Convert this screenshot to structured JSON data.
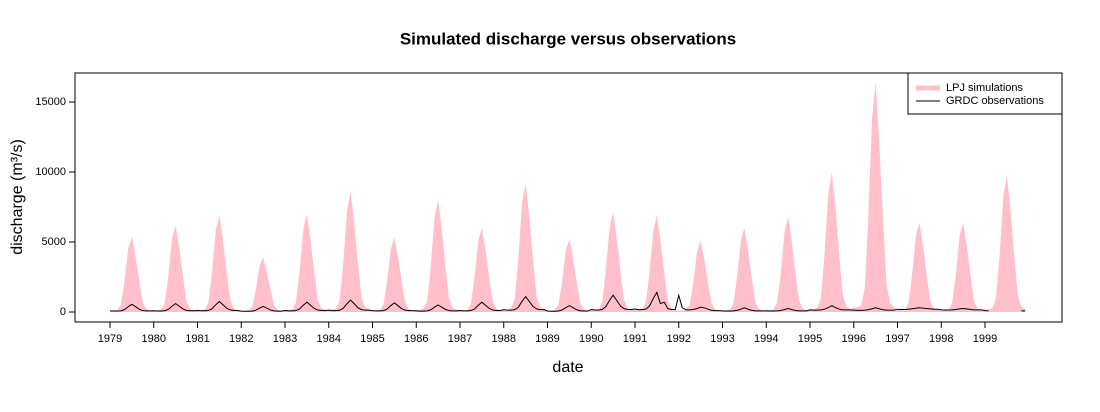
{
  "chart_data": {
    "type": "line",
    "title": "Simulated discharge versus observations",
    "xlabel": "date",
    "ylabel": "discharge (m³/s)",
    "x": [
      1979,
      1979.08,
      1979.17,
      1979.25,
      1979.33,
      1979.42,
      1979.5,
      1979.58,
      1979.67,
      1979.75,
      1979.83,
      1979.92,
      1980,
      1980.08,
      1980.17,
      1980.25,
      1980.33,
      1980.42,
      1980.5,
      1980.58,
      1980.67,
      1980.75,
      1980.83,
      1980.92,
      1981,
      1981.08,
      1981.17,
      1981.25,
      1981.33,
      1981.42,
      1981.5,
      1981.58,
      1981.67,
      1981.75,
      1981.83,
      1981.92,
      1982,
      1982.08,
      1982.17,
      1982.25,
      1982.33,
      1982.42,
      1982.5,
      1982.58,
      1982.67,
      1982.75,
      1982.83,
      1982.92,
      1983,
      1983.08,
      1983.17,
      1983.25,
      1983.33,
      1983.42,
      1983.5,
      1983.58,
      1983.67,
      1983.75,
      1983.83,
      1983.92,
      1984,
      1984.08,
      1984.17,
      1984.25,
      1984.33,
      1984.42,
      1984.5,
      1984.58,
      1984.67,
      1984.75,
      1984.83,
      1984.92,
      1985,
      1985.08,
      1985.17,
      1985.25,
      1985.33,
      1985.42,
      1985.5,
      1985.58,
      1985.67,
      1985.75,
      1985.83,
      1985.92,
      1986,
      1986.08,
      1986.17,
      1986.25,
      1986.33,
      1986.42,
      1986.5,
      1986.58,
      1986.67,
      1986.75,
      1986.83,
      1986.92,
      1987,
      1987.08,
      1987.17,
      1987.25,
      1987.33,
      1987.42,
      1987.5,
      1987.58,
      1987.67,
      1987.75,
      1987.83,
      1987.92,
      1988,
      1988.08,
      1988.17,
      1988.25,
      1988.33,
      1988.42,
      1988.5,
      1988.58,
      1988.67,
      1988.75,
      1988.83,
      1988.92,
      1989,
      1989.08,
      1989.17,
      1989.25,
      1989.33,
      1989.42,
      1989.5,
      1989.58,
      1989.67,
      1989.75,
      1989.83,
      1989.92,
      1990,
      1990.08,
      1990.17,
      1990.25,
      1990.33,
      1990.42,
      1990.5,
      1990.58,
      1990.67,
      1990.75,
      1990.83,
      1990.92,
      1991,
      1991.08,
      1991.17,
      1991.25,
      1991.33,
      1991.42,
      1991.5,
      1991.58,
      1991.67,
      1991.75,
      1991.83,
      1991.92,
      1992,
      1992.08,
      1992.17,
      1992.25,
      1992.33,
      1992.42,
      1992.5,
      1992.58,
      1992.67,
      1992.75,
      1992.83,
      1992.92,
      1993,
      1993.08,
      1993.17,
      1993.25,
      1993.33,
      1993.42,
      1993.5,
      1993.58,
      1993.67,
      1993.75,
      1993.83,
      1993.92,
      1994,
      1994.08,
      1994.17,
      1994.25,
      1994.33,
      1994.42,
      1994.5,
      1994.58,
      1994.67,
      1994.75,
      1994.83,
      1994.92,
      1995,
      1995.08,
      1995.17,
      1995.25,
      1995.33,
      1995.42,
      1995.5,
      1995.58,
      1995.67,
      1995.75,
      1995.83,
      1995.92,
      1996,
      1996.08,
      1996.17,
      1996.25,
      1996.33,
      1996.42,
      1996.5,
      1996.58,
      1996.67,
      1996.75,
      1996.83,
      1996.92,
      1997,
      1997.08,
      1997.17,
      1997.25,
      1997.33,
      1997.42,
      1997.5,
      1997.58,
      1997.67,
      1997.75,
      1997.83,
      1997.92,
      1998,
      1998.08,
      1998.17,
      1998.25,
      1998.33,
      1998.42,
      1998.5,
      1998.58,
      1998.67,
      1998.75,
      1998.83,
      1998.92,
      1999,
      1999.08,
      1999.17,
      1999.25,
      1999.33,
      1999.42,
      1999.5,
      1999.58,
      1999.67,
      1999.75,
      1999.83,
      1999.92
    ],
    "series": [
      {
        "name": "LPJ simulations",
        "color": "#ffc0cb",
        "values": [
          110,
          110,
          160,
          540,
          2160,
          4590,
          5400,
          4050,
          2160,
          650,
          220,
          110,
          120,
          120,
          190,
          620,
          2480,
          5270,
          6200,
          4650,
          2480,
          740,
          250,
          120,
          140,
          140,
          210,
          690,
          2760,
          5870,
          6900,
          5180,
          2760,
          830,
          280,
          140,
          80,
          80,
          120,
          390,
          1560,
          3320,
          3900,
          2930,
          1560,
          470,
          160,
          80,
          140,
          140,
          210,
          700,
          2800,
          5950,
          7000,
          5250,
          2800,
          840,
          280,
          140,
          170,
          170,
          260,
          860,
          3440,
          7310,
          8600,
          6450,
          3440,
          1030,
          340,
          170,
          110,
          110,
          160,
          530,
          2120,
          4510,
          5300,
          3980,
          2120,
          640,
          210,
          110,
          160,
          160,
          240,
          800,
          3200,
          6800,
          8000,
          6000,
          3200,
          960,
          320,
          160,
          120,
          120,
          180,
          600,
          2400,
          5100,
          6000,
          4500,
          2400,
          720,
          240,
          120,
          180,
          180,
          280,
          920,
          3680,
          7820,
          9200,
          6900,
          3680,
          1100,
          370,
          180,
          100,
          100,
          160,
          520,
          2080,
          4420,
          5200,
          3900,
          2080,
          620,
          210,
          100,
          140,
          140,
          210,
          710,
          2840,
          6040,
          7100,
          5330,
          2840,
          850,
          280,
          140,
          140,
          140,
          210,
          690,
          2760,
          5870,
          6900,
          5180,
          2760,
          830,
          280,
          140,
          100,
          100,
          150,
          510,
          2040,
          4340,
          5100,
          3830,
          2040,
          610,
          200,
          100,
          120,
          120,
          180,
          600,
          2400,
          5100,
          6000,
          4500,
          2400,
          720,
          240,
          120,
          140,
          140,
          200,
          680,
          2720,
          5780,
          6800,
          5100,
          2720,
          820,
          270,
          140,
          200,
          200,
          300,
          1000,
          4000,
          8500,
          10000,
          7500,
          4000,
          1200,
          400,
          200,
          330,
          330,
          490,
          1640,
          6560,
          13940,
          16400,
          12300,
          6560,
          1970,
          660,
          330,
          130,
          130,
          190,
          640,
          2560,
          5440,
          6400,
          4800,
          2560,
          770,
          260,
          130,
          130,
          130,
          190,
          640,
          2560,
          5440,
          6400,
          4800,
          2560,
          770,
          260,
          130,
          200,
          200,
          290,
          980,
          3920,
          8330,
          9800,
          7350,
          3920,
          1180,
          390,
          200
        ]
      },
      {
        "name": "GRDC observations",
        "color": "#000000",
        "values": [
          80,
          70,
          70,
          80,
          170,
          390,
          550,
          390,
          190,
          110,
          80,
          80,
          90,
          70,
          70,
          90,
          180,
          420,
          600,
          420,
          210,
          120,
          90,
          90,
          110,
          90,
          90,
          110,
          230,
          530,
          750,
          530,
          260,
          150,
          110,
          110,
          60,
          50,
          50,
          60,
          120,
          280,
          400,
          280,
          140,
          80,
          60,
          60,
          110,
          80,
          80,
          110,
          210,
          490,
          700,
          490,
          250,
          140,
          110,
          110,
          130,
          100,
          100,
          130,
          260,
          600,
          850,
          600,
          300,
          170,
          130,
          130,
          100,
          80,
          80,
          100,
          200,
          460,
          650,
          460,
          230,
          130,
          100,
          100,
          80,
          60,
          60,
          80,
          150,
          350,
          500,
          350,
          180,
          100,
          80,
          80,
          110,
          80,
          80,
          110,
          210,
          490,
          700,
          490,
          250,
          140,
          110,
          110,
          170,
          130,
          130,
          170,
          330,
          770,
          1100,
          770,
          390,
          220,
          170,
          170,
          70,
          50,
          50,
          70,
          140,
          320,
          450,
          320,
          160,
          90,
          70,
          70,
          180,
          140,
          140,
          180,
          360,
          840,
          1200,
          840,
          420,
          240,
          180,
          180,
          210,
          170,
          170,
          210,
          420,
          980,
          1400,
          600,
          700,
          240,
          180,
          180,
          1200,
          300,
          150,
          150,
          180,
          250,
          350,
          300,
          200,
          120,
          100,
          100,
          80,
          70,
          70,
          80,
          120,
          200,
          300,
          200,
          120,
          80,
          80,
          80,
          80,
          70,
          70,
          80,
          110,
          180,
          250,
          180,
          110,
          80,
          80,
          80,
          150,
          130,
          130,
          150,
          200,
          320,
          450,
          320,
          200,
          150,
          150,
          150,
          130,
          120,
          120,
          130,
          160,
          230,
          300,
          230,
          160,
          130,
          130,
          130,
          200,
          180,
          180,
          200,
          230,
          270,
          300,
          280,
          250,
          220,
          200,
          200,
          150,
          140,
          140,
          150,
          180,
          220,
          250,
          220,
          180,
          150,
          150,
          150,
          100,
          90,
          null,
          null,
          null,
          null,
          null,
          null,
          null,
          null,
          80,
          80
        ]
      }
    ],
    "xlim": [
      1978.2,
      2000.76
    ],
    "xticks": [
      1979,
      1980,
      1981,
      1982,
      1983,
      1984,
      1985,
      1986,
      1987,
      1988,
      1989,
      1990,
      1991,
      1992,
      1993,
      1994,
      1995,
      1996,
      1997,
      1998,
      1999
    ],
    "ylim": [
      -714,
      17071
    ],
    "yticks": [
      0,
      5000,
      10000,
      15000
    ],
    "legend": "topright"
  }
}
